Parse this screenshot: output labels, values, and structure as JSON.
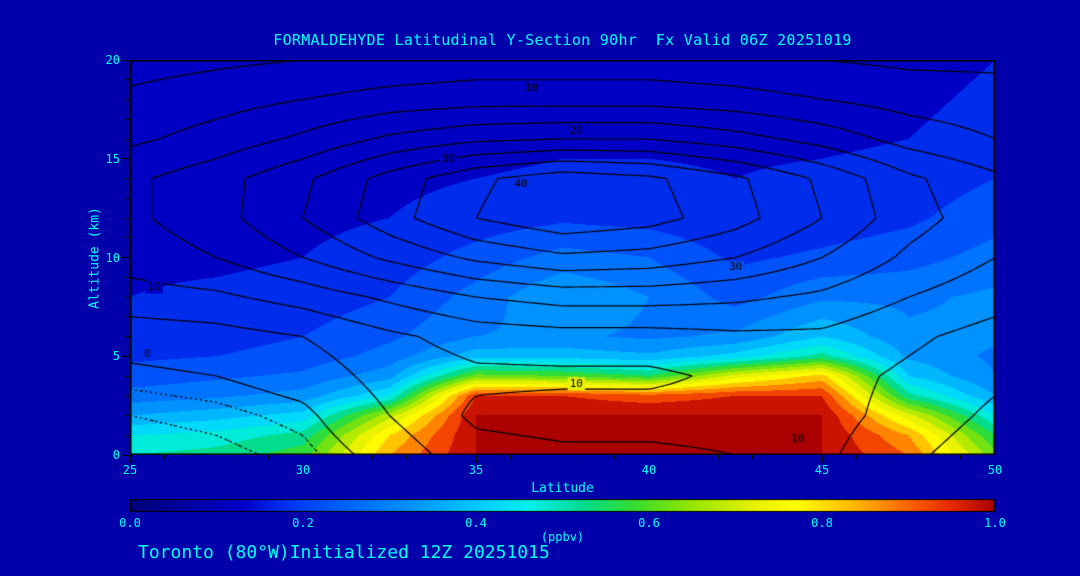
{
  "title": "FORMALDEHYDE Latitudinal Y-Section 90hr  Fx Valid 06Z 20251019",
  "footer": "Toronto (80°W)Initialized 12Z 20251015",
  "colors": {
    "background": "#0000AA",
    "text": "#00FFFF",
    "contour_line": "#000000",
    "plot_border": "#000000"
  },
  "axes": {
    "x_label": "Latitude",
    "y_label": "Altitude (km)",
    "x_min": 25,
    "x_max": 50,
    "y_min": 0,
    "y_max": 20,
    "x_ticks": [
      {
        "label": "25",
        "value": 25
      },
      {
        "label": "30",
        "value": 30
      },
      {
        "label": "35",
        "value": 35
      },
      {
        "label": "40",
        "value": 40
      },
      {
        "label": "45",
        "value": 45
      },
      {
        "label": "50",
        "value": 50
      }
    ],
    "y_ticks": [
      {
        "label": "0",
        "value": 0
      },
      {
        "label": "5",
        "value": 5
      },
      {
        "label": "10",
        "value": 10
      },
      {
        "label": "15",
        "value": 15
      },
      {
        "label": "20",
        "value": 20
      }
    ],
    "x_minor_step": 1,
    "y_minor_step": 1
  },
  "colorbar": {
    "units_label": "(ppbv)",
    "min": 0,
    "max": 1,
    "ticks": [
      {
        "label": "0.0",
        "value": 0.0
      },
      {
        "label": "0.2",
        "value": 0.2
      },
      {
        "label": "0.4",
        "value": 0.4
      },
      {
        "label": "0.6",
        "value": 0.6
      },
      {
        "label": "0.8",
        "value": 0.8
      },
      {
        "label": "1.0",
        "value": 1.0
      }
    ]
  },
  "chart_data": {
    "type": "heatmap",
    "title": "FORMALDEHYDE Latitudinal Y-Section 90hr  Fx Valid 06Z 20251019",
    "xlabel": "Latitude",
    "ylabel": "Altitude (km)",
    "fill_units": "ppbv",
    "x_lat": [
      25,
      27.5,
      30,
      32.5,
      35,
      37.5,
      40,
      42.5,
      45,
      47.5,
      50
    ],
    "y_alt_fill": [
      0,
      1,
      2,
      3,
      4,
      5,
      6,
      8,
      10,
      12,
      14,
      16,
      18,
      20
    ],
    "fill_values": [
      [
        0.5,
        0.52,
        0.58,
        0.85,
        1.0,
        1.0,
        1.0,
        1.0,
        1.0,
        0.9,
        0.62
      ],
      [
        0.45,
        0.47,
        0.52,
        0.8,
        1.0,
        1.0,
        1.0,
        1.0,
        1.0,
        0.85,
        0.55
      ],
      [
        0.35,
        0.38,
        0.42,
        0.68,
        1.0,
        1.0,
        1.0,
        1.0,
        1.0,
        0.72,
        0.45
      ],
      [
        0.27,
        0.29,
        0.32,
        0.45,
        0.95,
        0.95,
        0.92,
        0.95,
        0.95,
        0.52,
        0.35
      ],
      [
        0.22,
        0.24,
        0.26,
        0.33,
        0.62,
        0.6,
        0.55,
        0.72,
        0.82,
        0.4,
        0.3
      ],
      [
        0.19,
        0.2,
        0.22,
        0.27,
        0.38,
        0.38,
        0.36,
        0.42,
        0.52,
        0.34,
        0.29
      ],
      [
        0.17,
        0.18,
        0.2,
        0.24,
        0.3,
        0.31,
        0.29,
        0.31,
        0.4,
        0.31,
        0.31
      ],
      [
        0.15,
        0.16,
        0.17,
        0.2,
        0.27,
        0.35,
        0.3,
        0.23,
        0.29,
        0.29,
        0.31
      ],
      [
        0.14,
        0.14,
        0.15,
        0.17,
        0.22,
        0.27,
        0.25,
        0.19,
        0.21,
        0.23,
        0.27
      ],
      [
        0.13,
        0.13,
        0.14,
        0.15,
        0.17,
        0.19,
        0.18,
        0.16,
        0.17,
        0.19,
        0.23
      ],
      [
        0.13,
        0.13,
        0.13,
        0.14,
        0.15,
        0.16,
        0.16,
        0.15,
        0.16,
        0.17,
        0.2
      ],
      [
        0.12,
        0.12,
        0.12,
        0.13,
        0.13,
        0.14,
        0.14,
        0.14,
        0.14,
        0.15,
        0.17
      ],
      [
        0.12,
        0.12,
        0.12,
        0.12,
        0.13,
        0.13,
        0.13,
        0.13,
        0.13,
        0.14,
        0.16
      ],
      [
        0.11,
        0.11,
        0.11,
        0.12,
        0.12,
        0.12,
        0.12,
        0.12,
        0.12,
        0.13,
        0.15
      ]
    ],
    "fill_band_step": 0.05,
    "colormap": [
      [
        0.0,
        "#000078"
      ],
      [
        0.08,
        "#0000AA"
      ],
      [
        0.13,
        "#0000C8"
      ],
      [
        0.18,
        "#0032F0"
      ],
      [
        0.25,
        "#0064FF"
      ],
      [
        0.33,
        "#0096FF"
      ],
      [
        0.4,
        "#00C8FF"
      ],
      [
        0.46,
        "#00F0F0"
      ],
      [
        0.52,
        "#00DC96"
      ],
      [
        0.58,
        "#32DC32"
      ],
      [
        0.65,
        "#96E600"
      ],
      [
        0.72,
        "#E6F000"
      ],
      [
        0.77,
        "#FFFF00"
      ],
      [
        0.84,
        "#FFB400"
      ],
      [
        0.9,
        "#FF6400"
      ],
      [
        0.95,
        "#E62800"
      ],
      [
        1.0,
        "#AA0000"
      ]
    ],
    "y_alt_line": [
      0,
      2,
      4,
      6,
      8,
      10,
      12,
      14,
      16,
      18,
      20
    ],
    "line_values": [
      [
        -6,
        -5,
        -3,
        2,
        8,
        9,
        9,
        10,
        11,
        6,
        2
      ],
      [
        -4,
        -3,
        -1,
        5,
        11,
        12,
        12,
        12,
        12,
        8,
        4
      ],
      [
        -1,
        0,
        2,
        7,
        9,
        9,
        9,
        11,
        12,
        9,
        6
      ],
      [
        2,
        3,
        5,
        9,
        12,
        13,
        13,
        14,
        14,
        11,
        8
      ],
      [
        8,
        9,
        12,
        16,
        20,
        22,
        22,
        21,
        19,
        15,
        12
      ],
      [
        12,
        15,
        20,
        26,
        31,
        34,
        33,
        30,
        25,
        19,
        15
      ],
      [
        14,
        18,
        25,
        33,
        40,
        44,
        42,
        37,
        30,
        22,
        17
      ],
      [
        14,
        18,
        24,
        32,
        39,
        43,
        41,
        36,
        29,
        21,
        16
      ],
      [
        9,
        12,
        16,
        21,
        24,
        25,
        25,
        22,
        18,
        13,
        10
      ],
      [
        6,
        8,
        10,
        12,
        13,
        13,
        13,
        12,
        10,
        8,
        7
      ],
      [
        3,
        4,
        5,
        6,
        7,
        7,
        7,
        6,
        5,
        4,
        4
      ]
    ],
    "line_levels": [
      -4,
      -2,
      0,
      5,
      10,
      15,
      20,
      25,
      30,
      35,
      40
    ],
    "dotted_below": 0,
    "contour_labels": [
      {
        "text": "10",
        "lat": 36.6,
        "alt": 18.6
      },
      {
        "text": "20",
        "lat": 37.9,
        "alt": 16.4
      },
      {
        "text": "30",
        "lat": 34.2,
        "alt": 15.0
      },
      {
        "text": "40",
        "lat": 36.3,
        "alt": 13.7
      },
      {
        "text": "30",
        "lat": 42.5,
        "alt": 9.5
      },
      {
        "text": "10",
        "lat": 25.7,
        "alt": 8.5
      },
      {
        "text": "0",
        "lat": 25.5,
        "alt": 5.1
      },
      {
        "text": "10",
        "lat": 37.9,
        "alt": 3.6
      },
      {
        "text": "10",
        "lat": 44.3,
        "alt": 0.8
      }
    ]
  }
}
